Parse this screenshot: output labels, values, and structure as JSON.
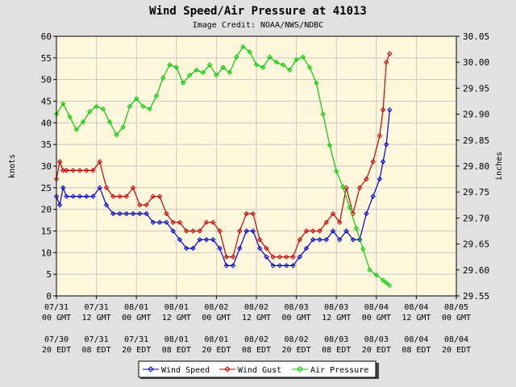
{
  "chart_data": {
    "type": "line",
    "title": "Wind Speed/Air Pressure at 41013",
    "subtitle": "Image Credit: NOAA/NWS/NDBC",
    "ylabel_left": "knots",
    "ylabel_right": "inches",
    "ylim_left": [
      0,
      60
    ],
    "ylim_right": [
      29.55,
      30.05
    ],
    "xlim_hours": [
      0,
      120
    ],
    "yticks_left": [
      "0",
      "5",
      "10",
      "15",
      "20",
      "25",
      "30",
      "35",
      "40",
      "45",
      "50",
      "55",
      "60"
    ],
    "yticks_right": [
      "29.55",
      "29.60",
      "29.65",
      "29.70",
      "29.75",
      "29.80",
      "29.85",
      "29.90",
      "29.95",
      "30.00",
      "30.05"
    ],
    "xticks_gmt": [
      {
        "date": "07/31",
        "time": "00 GMT"
      },
      {
        "date": "07/31",
        "time": "12 GMT"
      },
      {
        "date": "08/01",
        "time": "00 GMT"
      },
      {
        "date": "08/01",
        "time": "12 GMT"
      },
      {
        "date": "08/02",
        "time": "00 GMT"
      },
      {
        "date": "08/02",
        "time": "12 GMT"
      },
      {
        "date": "08/03",
        "time": "00 GMT"
      },
      {
        "date": "08/03",
        "time": "12 GMT"
      },
      {
        "date": "08/04",
        "time": "00 GMT"
      },
      {
        "date": "08/04",
        "time": "12 GMT"
      },
      {
        "date": "08/05",
        "time": "00 GMT"
      }
    ],
    "xticks_edt": [
      {
        "date": "07/30",
        "time": "20 EDT"
      },
      {
        "date": "07/31",
        "time": "08 EDT"
      },
      {
        "date": "07/31",
        "time": "20 EDT"
      },
      {
        "date": "08/01",
        "time": "08 EDT"
      },
      {
        "date": "08/01",
        "time": "20 EDT"
      },
      {
        "date": "08/02",
        "time": "08 EDT"
      },
      {
        "date": "08/02",
        "time": "20 EDT"
      },
      {
        "date": "08/03",
        "time": "08 EDT"
      },
      {
        "date": "08/03",
        "time": "20 EDT"
      },
      {
        "date": "08/04",
        "time": "08 EDT"
      },
      {
        "date": "08/04",
        "time": "20 EDT"
      }
    ],
    "series": [
      {
        "name": "Wind Speed",
        "axis": "left",
        "color": "#0000cc",
        "x": [
          0,
          1,
          2,
          3,
          5,
          7,
          9,
          11,
          13,
          15,
          17,
          19,
          21,
          23,
          25,
          27,
          29,
          31,
          33,
          35,
          37,
          39,
          41,
          43,
          45,
          47,
          49,
          51,
          53,
          55,
          57,
          59,
          61,
          63,
          65,
          67,
          69,
          71,
          73,
          75,
          77,
          79,
          81,
          83,
          85,
          87,
          89,
          91,
          93,
          95,
          97,
          98,
          99,
          100
        ],
        "y": [
          23,
          21,
          25,
          23,
          23,
          23,
          23,
          23,
          25,
          21,
          19,
          19,
          19,
          19,
          19,
          19,
          17,
          17,
          17,
          15,
          13,
          11,
          11,
          13,
          13,
          13,
          11,
          7,
          7,
          11,
          15,
          15,
          11,
          9,
          7,
          7,
          7,
          7,
          9,
          11,
          13,
          13,
          13,
          15,
          13,
          15,
          13,
          13,
          19,
          23,
          27,
          31,
          35,
          43
        ]
      },
      {
        "name": "Wind Gust",
        "axis": "left",
        "color": "#cc0000",
        "x": [
          0,
          1,
          2,
          3,
          5,
          7,
          9,
          11,
          13,
          15,
          17,
          19,
          21,
          23,
          25,
          27,
          29,
          31,
          33,
          35,
          37,
          39,
          41,
          43,
          45,
          47,
          49,
          51,
          53,
          55,
          57,
          59,
          61,
          63,
          65,
          67,
          69,
          71,
          73,
          75,
          77,
          79,
          81,
          83,
          85,
          87,
          89,
          91,
          93,
          95,
          97,
          98,
          99,
          100
        ],
        "y": [
          27,
          31,
          29,
          29,
          29,
          29,
          29,
          29,
          31,
          25,
          23,
          23,
          23,
          25,
          21,
          21,
          23,
          23,
          19,
          17,
          17,
          15,
          15,
          15,
          17,
          17,
          15,
          9,
          9,
          15,
          19,
          19,
          13,
          11,
          9,
          9,
          9,
          9,
          13,
          15,
          15,
          15,
          17,
          19,
          17,
          25,
          19,
          25,
          27,
          31,
          37,
          43,
          54,
          56
        ]
      },
      {
        "name": "Air Pressure",
        "axis": "right",
        "color": "#00cc00",
        "x": [
          0,
          2,
          4,
          6,
          8,
          10,
          12,
          14,
          16,
          18,
          20,
          22,
          24,
          26,
          28,
          30,
          32,
          34,
          36,
          38,
          40,
          42,
          44,
          46,
          48,
          50,
          52,
          54,
          56,
          58,
          60,
          62,
          64,
          66,
          68,
          70,
          72,
          74,
          76,
          78,
          80,
          82,
          84,
          86,
          88,
          90,
          92,
          94,
          96,
          98,
          99,
          100
        ],
        "y": [
          29.9,
          29.92,
          29.895,
          29.87,
          29.885,
          29.905,
          29.915,
          29.91,
          29.885,
          29.86,
          29.875,
          29.915,
          29.93,
          29.915,
          29.91,
          29.935,
          29.97,
          29.995,
          29.99,
          29.96,
          29.975,
          29.985,
          29.98,
          29.995,
          29.975,
          29.99,
          29.98,
          30.01,
          30.03,
          30.02,
          29.995,
          29.99,
          30.01,
          30.0,
          29.995,
          29.985,
          30.005,
          30.01,
          29.99,
          29.96,
          29.9,
          29.84,
          29.79,
          29.76,
          29.72,
          29.68,
          29.64,
          29.6,
          29.59,
          29.58,
          29.575,
          29.57
        ]
      }
    ],
    "legend": {
      "position": "bottom",
      "entries": [
        "Wind Speed",
        "Wind Gust",
        "Air Pressure"
      ]
    },
    "colors": {
      "plot_bg": "#fff8dc",
      "page_bg": "#e1e1e1",
      "grid": "#c8c8c8"
    }
  }
}
